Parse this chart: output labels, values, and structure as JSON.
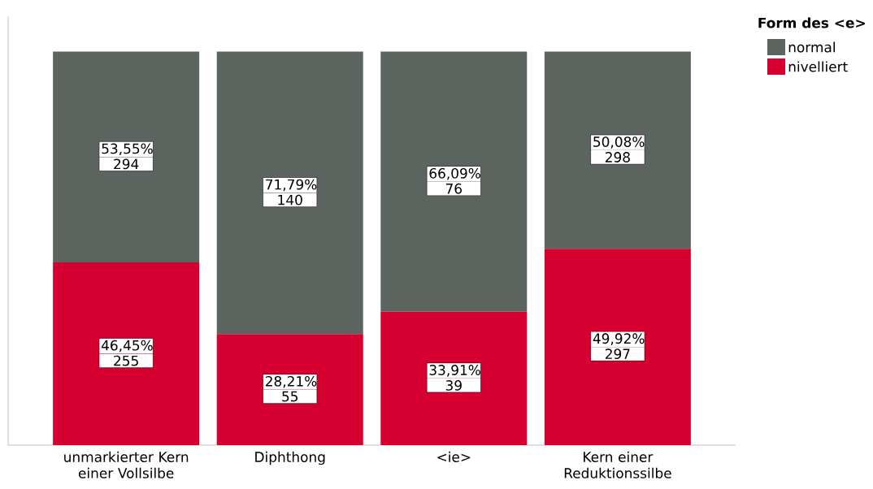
{
  "chart_data": {
    "type": "bar",
    "stacked": true,
    "categories": [
      "unmarkierter Kern einer Vollsilbe",
      "Diphthong",
      "<ie>",
      "Kern einer Reduktionssilbe"
    ],
    "legend_title": "Form des <e>",
    "legend": "right",
    "series": [
      {
        "name": "nivelliert",
        "color": "#d5002f",
        "values": [
          46.45,
          28.21,
          33.91,
          49.92
        ],
        "value_labels": [
          "46,45%",
          "28,21%",
          "33,91%",
          "49,92%"
        ]
      },
      {
        "name": "normal",
        "color": "#5b645f",
        "values": [
          53.55,
          71.79,
          66.09,
          50.08
        ],
        "value_labels": [
          "53,55%",
          "71,79%",
          "66,09%",
          "50,08%"
        ]
      }
    ],
    "annotations": [
      "255",
      "55",
      "39",
      "297",
      "294",
      "140",
      "76",
      "298"
    ]
  }
}
